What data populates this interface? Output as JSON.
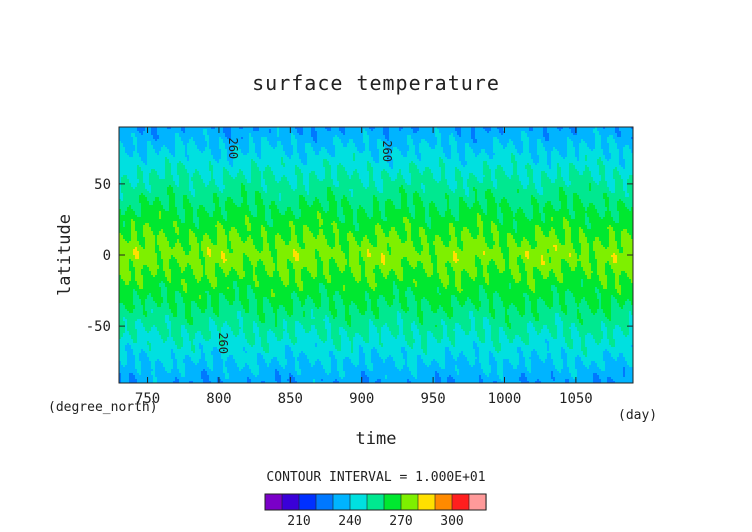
{
  "chart_data": {
    "type": "heatmap",
    "title": "surface temperature",
    "xlabel": "time",
    "ylabel": "latitude",
    "x_units": "(day)",
    "y_units": "(degree_north)",
    "xlim": [
      730,
      1090
    ],
    "ylim": [
      -90,
      90
    ],
    "x_ticks": [
      750,
      800,
      850,
      900,
      950,
      1000,
      1050
    ],
    "y_ticks": [
      50,
      0,
      -50
    ],
    "contour_interval_label": "CONTOUR INTERVAL = 1.000E+01",
    "contour_labels": [
      "260",
      "260",
      "260"
    ],
    "color_levels": [
      190,
      200,
      210,
      220,
      230,
      240,
      250,
      260,
      270,
      280,
      290,
      300,
      310
    ],
    "colorbar_tick_labels": [
      "210",
      "240",
      "270",
      "300"
    ],
    "colors": [
      "#7a00c8",
      "#3a00d8",
      "#0030ff",
      "#0078ff",
      "#00b4ff",
      "#00e0e0",
      "#00e890",
      "#00e830",
      "#7ef000",
      "#ffe000",
      "#ff8a00",
      "#ff1e1e",
      "#ff9a9a"
    ],
    "field_description_by_latitude": {
      "equator_band_K": 275,
      "lat_30_K": 262,
      "lat_60_K": 248,
      "pole_K": 232
    }
  }
}
